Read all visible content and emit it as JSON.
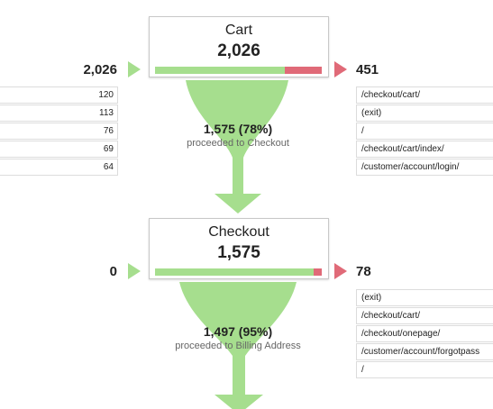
{
  "steps": [
    {
      "name": "Cart",
      "count": "2,026",
      "entrances": "2,026",
      "exits": "451",
      "fill_fraction": 0.78,
      "entrance_sources": [
        "120",
        "113",
        "76",
        "69",
        "64"
      ],
      "exit_destinations": [
        "/checkout/cart/",
        "(exit)",
        "/",
        "/checkout/cart/index/",
        "/customer/account/login/"
      ],
      "conversion": {
        "value": "1,575 (78%)",
        "label": "proceeded to Checkout"
      }
    },
    {
      "name": "Checkout",
      "count": "1,575",
      "entrances": "0",
      "exits": "78",
      "fill_fraction": 0.95,
      "entrance_sources": [],
      "exit_destinations": [
        "(exit)",
        "/checkout/cart/",
        "/checkout/onepage/",
        "/customer/account/forgotpass",
        "/"
      ],
      "conversion": {
        "value": "1,497 (95%)",
        "label": "proceeded to Billing Address"
      }
    }
  ],
  "colors": {
    "funnel_green": "#a6de8e",
    "exit_red": "#e06a78"
  }
}
